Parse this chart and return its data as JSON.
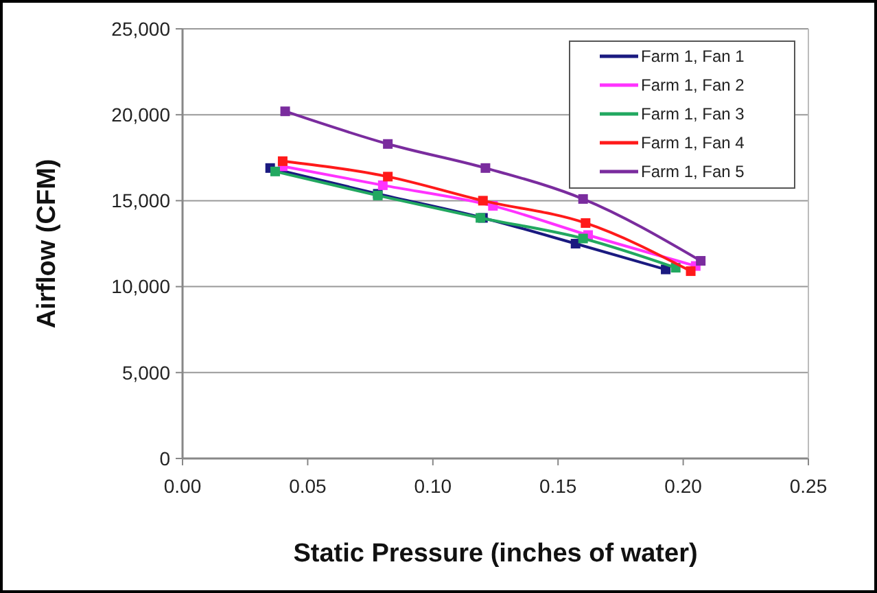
{
  "chart_data": {
    "type": "line",
    "xlabel": "Static Pressure (inches of water)",
    "ylabel": "Airflow (CFM)",
    "xlim": [
      0,
      0.25
    ],
    "xticks": [
      {
        "value": 0,
        "label": "0.00"
      },
      {
        "value": 0.05,
        "label": "0.05"
      },
      {
        "value": 0.1,
        "label": "0.10"
      },
      {
        "value": 0.15,
        "label": "0.15"
      },
      {
        "value": 0.2,
        "label": "0.20"
      },
      {
        "value": 0.25,
        "label": "0.25"
      }
    ],
    "ylim": [
      0,
      25000
    ],
    "yticks": [
      {
        "value": 0,
        "label": "0"
      },
      {
        "value": 5000,
        "label": "5,000"
      },
      {
        "value": 10000,
        "label": "10,000"
      },
      {
        "value": 15000,
        "label": "15,000"
      },
      {
        "value": 20000,
        "label": "20,000"
      },
      {
        "value": 25000,
        "label": "25,000"
      }
    ],
    "grid": "y",
    "legend": "top right",
    "marker": "square",
    "series": [
      {
        "name": "Farm 1, Fan 1",
        "color": "#1a1a80",
        "x": [
          0.035,
          0.078,
          0.12,
          0.157,
          0.193
        ],
        "values": [
          16900,
          15400,
          14000,
          12500,
          11000
        ]
      },
      {
        "name": "Farm 1, Fan 2",
        "color": "#ff33ff",
        "x": [
          0.04,
          0.08,
          0.124,
          0.162,
          0.205
        ],
        "values": [
          17000,
          15900,
          14700,
          13000,
          11200
        ]
      },
      {
        "name": "Farm 1, Fan 3",
        "color": "#22a860",
        "x": [
          0.037,
          0.078,
          0.119,
          0.16,
          0.197
        ],
        "values": [
          16700,
          15300,
          14000,
          12800,
          11100
        ]
      },
      {
        "name": "Farm 1, Fan 4",
        "color": "#ff1a1a",
        "x": [
          0.04,
          0.082,
          0.12,
          0.161,
          0.203
        ],
        "values": [
          17300,
          16400,
          15000,
          13700,
          10900
        ]
      },
      {
        "name": "Farm 1, Fan 5",
        "color": "#7a2c9e",
        "x": [
          0.041,
          0.082,
          0.121,
          0.16,
          0.207
        ],
        "values": [
          20200,
          18300,
          16900,
          15100,
          11500
        ]
      }
    ]
  }
}
